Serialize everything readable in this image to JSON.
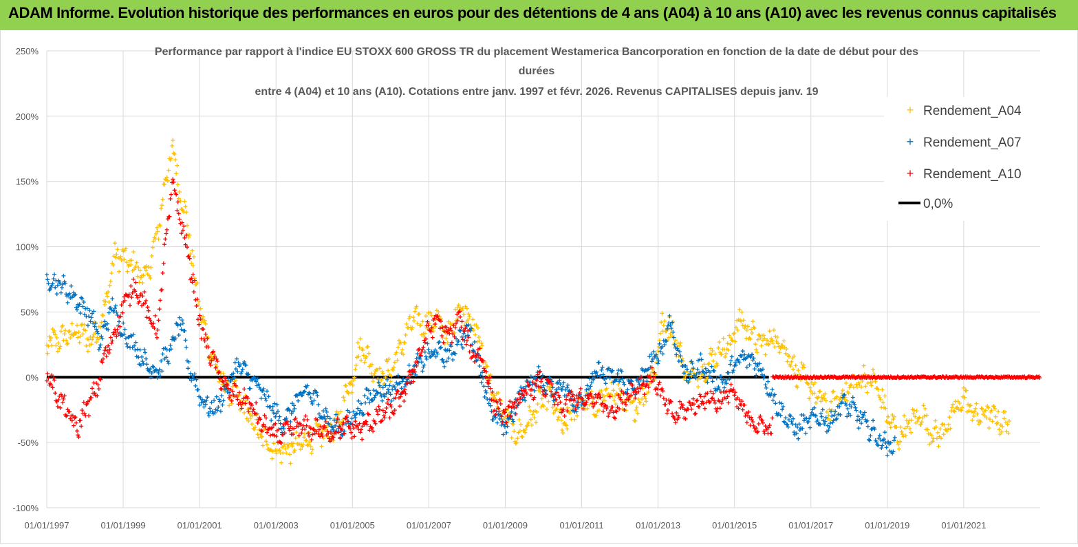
{
  "banner": {
    "title": "ADAM Informe. Evolution historique des performances en euros pour des détentions de 4 ans (A04) à 10 ans (A10) avec les revenus connus capitalisés"
  },
  "chart_data": {
    "type": "scatter",
    "title_lines": [
      "Performance par rapport à l'indice EU STOXX 600 GROSS TR  du placement Westamerica Bancorporation en fonction de la date de début pour des",
      "durées",
      "entre 4 (A04) et 10 ans (A10).  Cotations entre janv. 1997 et févr. 2026. Revenus CAPITALISES depuis janv. 19"
    ],
    "x_range": [
      1997.0,
      2023.0
    ],
    "ylim": [
      -100,
      250
    ],
    "y_ticks": [
      250,
      200,
      150,
      100,
      50,
      0,
      -50,
      -100
    ],
    "y_tick_labels": [
      "250%",
      "200%",
      "150%",
      "100%",
      "50%",
      "0%",
      "-50%",
      "-100%"
    ],
    "x_ticks": [
      1997,
      1999,
      2001,
      2003,
      2005,
      2007,
      2009,
      2011,
      2013,
      2015,
      2017,
      2019,
      2021
    ],
    "x_tick_labels": [
      "01/01/1997",
      "01/01/1999",
      "01/01/2001",
      "01/01/2003",
      "01/01/2005",
      "01/01/2007",
      "01/01/2009",
      "01/01/2011",
      "01/01/2013",
      "01/01/2015",
      "01/01/2017",
      "01/01/2019",
      "01/01/2021"
    ],
    "legend": {
      "position": "top-right",
      "entries": [
        "Rendement_A04",
        "Rendement_A07",
        "Rendement_A10",
        "0,0%"
      ]
    },
    "series": [
      {
        "name": "Rendement_A04",
        "color": "#ffc000",
        "end": 2022.2,
        "keypoints": [
          [
            1997.0,
            25
          ],
          [
            1997.4,
            30
          ],
          [
            1997.8,
            35
          ],
          [
            1998.2,
            28
          ],
          [
            1998.5,
            50
          ],
          [
            1998.8,
            95
          ],
          [
            1999.0,
            90
          ],
          [
            1999.3,
            85
          ],
          [
            1999.6,
            75
          ],
          [
            1999.9,
            110
          ],
          [
            2000.1,
            150
          ],
          [
            2000.3,
            175
          ],
          [
            2000.5,
            140
          ],
          [
            2000.7,
            115
          ],
          [
            2000.9,
            70
          ],
          [
            2001.1,
            40
          ],
          [
            2001.4,
            10
          ],
          [
            2001.7,
            -10
          ],
          [
            2002.0,
            -15
          ],
          [
            2002.3,
            -30
          ],
          [
            2002.6,
            -45
          ],
          [
            2003.0,
            -55
          ],
          [
            2003.3,
            -56
          ],
          [
            2003.6,
            -52
          ],
          [
            2004.0,
            -45
          ],
          [
            2004.3,
            -42
          ],
          [
            2004.6,
            -38
          ],
          [
            2004.8,
            -15
          ],
          [
            2005.0,
            0
          ],
          [
            2005.2,
            25
          ],
          [
            2005.4,
            15
          ],
          [
            2005.7,
            0
          ],
          [
            2006.0,
            5
          ],
          [
            2006.3,
            25
          ],
          [
            2006.6,
            45
          ],
          [
            2006.9,
            40
          ],
          [
            2007.2,
            45
          ],
          [
            2007.5,
            30
          ],
          [
            2007.8,
            55
          ],
          [
            2008.1,
            45
          ],
          [
            2008.4,
            20
          ],
          [
            2008.7,
            -15
          ],
          [
            2009.0,
            -30
          ],
          [
            2009.3,
            -45
          ],
          [
            2009.6,
            -35
          ],
          [
            2009.9,
            -20
          ],
          [
            2010.2,
            -15
          ],
          [
            2010.5,
            -40
          ],
          [
            2010.8,
            -25
          ],
          [
            2011.1,
            -15
          ],
          [
            2011.4,
            -25
          ],
          [
            2011.7,
            -10
          ],
          [
            2012.0,
            -15
          ],
          [
            2012.3,
            -25
          ],
          [
            2012.6,
            -15
          ],
          [
            2012.9,
            5
          ],
          [
            2013.1,
            40
          ],
          [
            2013.4,
            35
          ],
          [
            2013.7,
            5
          ],
          [
            2014.0,
            0
          ],
          [
            2014.3,
            10
          ],
          [
            2014.6,
            20
          ],
          [
            2014.9,
            25
          ],
          [
            2015.1,
            45
          ],
          [
            2015.4,
            35
          ],
          [
            2015.7,
            25
          ],
          [
            2016.0,
            30
          ],
          [
            2016.3,
            25
          ],
          [
            2016.6,
            5
          ],
          [
            2016.9,
            -5
          ],
          [
            2017.2,
            -15
          ],
          [
            2017.5,
            -25
          ],
          [
            2017.8,
            -15
          ],
          [
            2018.1,
            -5
          ],
          [
            2018.4,
            0
          ],
          [
            2018.7,
            -5
          ],
          [
            2019.0,
            -30
          ],
          [
            2019.3,
            -45
          ],
          [
            2019.6,
            -35
          ],
          [
            2019.9,
            -28
          ],
          [
            2020.2,
            -45
          ],
          [
            2020.5,
            -40
          ],
          [
            2020.8,
            -25
          ],
          [
            2021.0,
            -15
          ],
          [
            2021.3,
            -30
          ],
          [
            2021.6,
            -28
          ],
          [
            2021.9,
            -32
          ],
          [
            2022.2,
            -38
          ]
        ]
      },
      {
        "name": "Rendement_A07",
        "color": "#0070c0",
        "end": 2019.2,
        "keypoints": [
          [
            1997.0,
            75
          ],
          [
            1997.3,
            72
          ],
          [
            1997.6,
            65
          ],
          [
            1997.9,
            55
          ],
          [
            1998.2,
            45
          ],
          [
            1998.4,
            25
          ],
          [
            1998.7,
            55
          ],
          [
            1999.0,
            35
          ],
          [
            1999.3,
            25
          ],
          [
            1999.6,
            10
          ],
          [
            1999.9,
            5
          ],
          [
            2000.1,
            15
          ],
          [
            2000.3,
            25
          ],
          [
            2000.5,
            45
          ],
          [
            2000.7,
            10
          ],
          [
            2000.9,
            -5
          ],
          [
            2001.1,
            -20
          ],
          [
            2001.4,
            -25
          ],
          [
            2001.7,
            -10
          ],
          [
            2002.0,
            10
          ],
          [
            2002.3,
            0
          ],
          [
            2002.6,
            -10
          ],
          [
            2002.9,
            -25
          ],
          [
            2003.2,
            -35
          ],
          [
            2003.5,
            -20
          ],
          [
            2003.8,
            -10
          ],
          [
            2004.1,
            -20
          ],
          [
            2004.4,
            -35
          ],
          [
            2004.7,
            -40
          ],
          [
            2005.0,
            -30
          ],
          [
            2005.3,
            -20
          ],
          [
            2005.6,
            -10
          ],
          [
            2006.0,
            -10
          ],
          [
            2006.3,
            -5
          ],
          [
            2006.6,
            5
          ],
          [
            2006.9,
            15
          ],
          [
            2007.2,
            20
          ],
          [
            2007.5,
            15
          ],
          [
            2007.8,
            30
          ],
          [
            2008.1,
            35
          ],
          [
            2008.4,
            0
          ],
          [
            2008.7,
            -30
          ],
          [
            2009.0,
            -40
          ],
          [
            2009.3,
            -20
          ],
          [
            2009.6,
            -5
          ],
          [
            2009.9,
            0
          ],
          [
            2010.2,
            -10
          ],
          [
            2010.5,
            -5
          ],
          [
            2010.8,
            -20
          ],
          [
            2011.1,
            -15
          ],
          [
            2011.4,
            5
          ],
          [
            2011.7,
            0
          ],
          [
            2012.0,
            0
          ],
          [
            2012.3,
            -10
          ],
          [
            2012.6,
            0
          ],
          [
            2012.9,
            15
          ],
          [
            2013.1,
            20
          ],
          [
            2013.3,
            45
          ],
          [
            2013.5,
            20
          ],
          [
            2013.8,
            0
          ],
          [
            2014.1,
            10
          ],
          [
            2014.4,
            0
          ],
          [
            2014.7,
            -5
          ],
          [
            2015.0,
            10
          ],
          [
            2015.3,
            15
          ],
          [
            2015.6,
            10
          ],
          [
            2015.8,
            0
          ],
          [
            2016.0,
            -15
          ],
          [
            2016.3,
            -30
          ],
          [
            2016.6,
            -40
          ],
          [
            2016.9,
            -35
          ],
          [
            2017.2,
            -30
          ],
          [
            2017.5,
            -35
          ],
          [
            2017.8,
            -20
          ],
          [
            2018.1,
            -25
          ],
          [
            2018.4,
            -35
          ],
          [
            2018.7,
            -45
          ],
          [
            2019.0,
            -52
          ],
          [
            2019.2,
            -55
          ]
        ]
      },
      {
        "name": "Rendement_A10",
        "color": "#ff0000",
        "end": 2016.0,
        "keypoints": [
          [
            1997.0,
            5
          ],
          [
            1997.2,
            -10
          ],
          [
            1997.5,
            -25
          ],
          [
            1997.8,
            -40
          ],
          [
            1998.0,
            -25
          ],
          [
            1998.3,
            -10
          ],
          [
            1998.5,
            15
          ],
          [
            1998.8,
            35
          ],
          [
            1999.0,
            55
          ],
          [
            1999.3,
            70
          ],
          [
            1999.5,
            60
          ],
          [
            1999.7,
            45
          ],
          [
            1999.9,
            35
          ],
          [
            2000.1,
            100
          ],
          [
            2000.3,
            150
          ],
          [
            2000.5,
            120
          ],
          [
            2000.7,
            95
          ],
          [
            2000.9,
            60
          ],
          [
            2001.1,
            30
          ],
          [
            2001.4,
            10
          ],
          [
            2001.7,
            -10
          ],
          [
            2002.0,
            -15
          ],
          [
            2002.3,
            -20
          ],
          [
            2002.6,
            -35
          ],
          [
            2003.0,
            -45
          ],
          [
            2003.3,
            -42
          ],
          [
            2003.6,
            -38
          ],
          [
            2004.0,
            -40
          ],
          [
            2004.4,
            -42
          ],
          [
            2004.8,
            -38
          ],
          [
            2005.2,
            -40
          ],
          [
            2005.6,
            -32
          ],
          [
            2006.0,
            -25
          ],
          [
            2006.3,
            -15
          ],
          [
            2006.6,
            5
          ],
          [
            2006.9,
            30
          ],
          [
            2007.2,
            45
          ],
          [
            2007.5,
            30
          ],
          [
            2007.8,
            45
          ],
          [
            2008.1,
            20
          ],
          [
            2008.4,
            15
          ],
          [
            2008.7,
            -20
          ],
          [
            2009.0,
            -30
          ],
          [
            2009.3,
            -20
          ],
          [
            2009.6,
            -10
          ],
          [
            2009.9,
            -5
          ],
          [
            2010.2,
            -10
          ],
          [
            2010.5,
            -25
          ],
          [
            2010.8,
            -15
          ],
          [
            2011.1,
            -20
          ],
          [
            2011.4,
            -15
          ],
          [
            2011.7,
            -25
          ],
          [
            2012.0,
            -20
          ],
          [
            2012.3,
            -10
          ],
          [
            2012.6,
            -5
          ],
          [
            2012.9,
            0
          ],
          [
            2013.1,
            -15
          ],
          [
            2013.4,
            -30
          ],
          [
            2013.7,
            -25
          ],
          [
            2014.0,
            -20
          ],
          [
            2014.3,
            -15
          ],
          [
            2014.6,
            -20
          ],
          [
            2014.9,
            -10
          ],
          [
            2015.2,
            -25
          ],
          [
            2015.5,
            -35
          ],
          [
            2015.8,
            -38
          ],
          [
            2016.0,
            -40
          ]
        ],
        "flat_segment": {
          "from": 2016.0,
          "to": 2023.0,
          "value": 0
        }
      }
    ],
    "reference_line": {
      "name": "0,0%",
      "value": 0,
      "from": 1997.0,
      "to": 2015.9,
      "color": "#000000"
    }
  }
}
